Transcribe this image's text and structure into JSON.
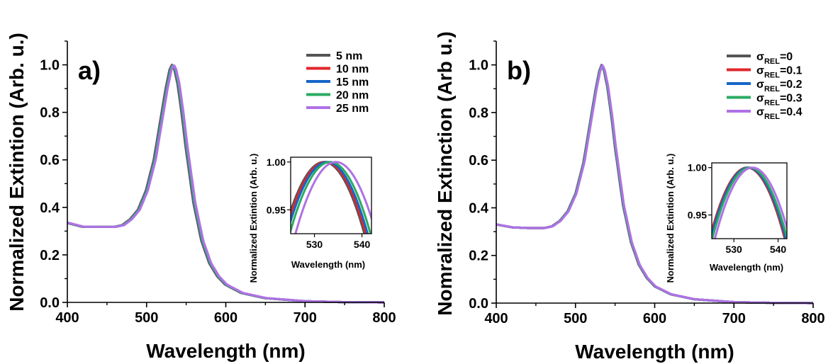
{
  "colors": {
    "5nm": "#555555",
    "10nm": "#e0262b",
    "15nm": "#1565c8",
    "20nm": "#2bab62",
    "25nm": "#b071e6",
    "axis": "#000000"
  },
  "chart_data": [
    {
      "type": "line",
      "panel_label": "a)",
      "xlabel": "Wavelength (nm)",
      "ylabel": "Normalized Extintion (Arb. u.)",
      "xlim": [
        400,
        800
      ],
      "ylim": [
        0,
        1.1
      ],
      "xticks": [
        "400",
        "500",
        "600",
        "700",
        "800"
      ],
      "yticks": [
        "0.0",
        "0.2",
        "0.4",
        "0.6",
        "0.8",
        "1.0"
      ],
      "legend": {
        "position": "top-right"
      },
      "series": [
        {
          "name": "5 nm",
          "color": "#555555",
          "peak": 532.0
        },
        {
          "name": "10 nm",
          "color": "#e0262b",
          "peak": 532.3
        },
        {
          "name": "15 nm",
          "color": "#1565c8",
          "peak": 532.7
        },
        {
          "name": "20 nm",
          "color": "#2bab62",
          "peak": 533.3
        },
        {
          "name": "25 nm",
          "color": "#b071e6",
          "peak": 534.5
        }
      ],
      "x": [
        400,
        420,
        440,
        460,
        470,
        480,
        490,
        500,
        510,
        520,
        525,
        530,
        533,
        536,
        540,
        545,
        550,
        560,
        570,
        580,
        590,
        600,
        620,
        650,
        700,
        750,
        800
      ],
      "y": [
        0.335,
        0.318,
        0.318,
        0.318,
        0.325,
        0.35,
        0.39,
        0.47,
        0.6,
        0.8,
        0.9,
        0.98,
        1.0,
        0.98,
        0.92,
        0.8,
        0.66,
        0.42,
        0.26,
        0.165,
        0.11,
        0.075,
        0.04,
        0.018,
        0.005,
        0.001,
        0.0
      ],
      "inset": {
        "xlabel": "Wavelength (nm)",
        "ylabel": "Normalized Extintion (Arb. u.)",
        "xlim": [
          525,
          542
        ],
        "ylim": [
          0.925,
          1.005
        ],
        "xticks": [
          "530",
          "540"
        ],
        "yticks": [
          "0.95",
          "1.00"
        ]
      }
    },
    {
      "type": "line",
      "panel_label": "b)",
      "xlabel": "Wavelength (nm)",
      "ylabel": "Nomralized Extinction (Arb u.)",
      "xlim": [
        400,
        800
      ],
      "ylim": [
        0,
        1.1
      ],
      "xticks": [
        "400",
        "500",
        "600",
        "700",
        "800"
      ],
      "yticks": [
        "0.0",
        "0.2",
        "0.4",
        "0.6",
        "0.8",
        "1.0"
      ],
      "legend": {
        "position": "top-right"
      },
      "series": [
        {
          "name_base": "σ",
          "name_sub": "REL",
          "name_suffix": "=0",
          "color": "#555555",
          "peak": 533.0
        },
        {
          "name_base": "σ",
          "name_sub": "REL",
          "name_suffix": "=0.1",
          "color": "#e0262b",
          "peak": 533.1
        },
        {
          "name_base": "σ",
          "name_sub": "REL",
          "name_suffix": "=0.2",
          "color": "#1565c8",
          "peak": 533.3
        },
        {
          "name_base": "σ",
          "name_sub": "REL",
          "name_suffix": "=0.3",
          "color": "#2bab62",
          "peak": 533.6
        },
        {
          "name_base": "σ",
          "name_sub": "REL",
          "name_suffix": "=0.4",
          "color": "#b071e6",
          "peak": 534.2
        }
      ],
      "x": [
        400,
        420,
        440,
        460,
        470,
        480,
        490,
        500,
        510,
        520,
        525,
        530,
        533,
        536,
        540,
        545,
        550,
        560,
        570,
        580,
        590,
        600,
        620,
        650,
        700,
        750,
        800
      ],
      "y": [
        0.33,
        0.318,
        0.315,
        0.315,
        0.322,
        0.345,
        0.385,
        0.46,
        0.59,
        0.79,
        0.89,
        0.975,
        1.0,
        0.975,
        0.91,
        0.79,
        0.65,
        0.41,
        0.255,
        0.16,
        0.105,
        0.07,
        0.037,
        0.016,
        0.004,
        0.001,
        0.0
      ],
      "inset": {
        "xlabel": "Wavelength (nm)",
        "ylabel": "Normalized Extintion (Arb. u.)",
        "xlim": [
          525,
          542
        ],
        "ylim": [
          0.925,
          1.005
        ],
        "xticks": [
          "530",
          "540"
        ],
        "yticks": [
          "0.95",
          "1.00"
        ]
      }
    }
  ]
}
